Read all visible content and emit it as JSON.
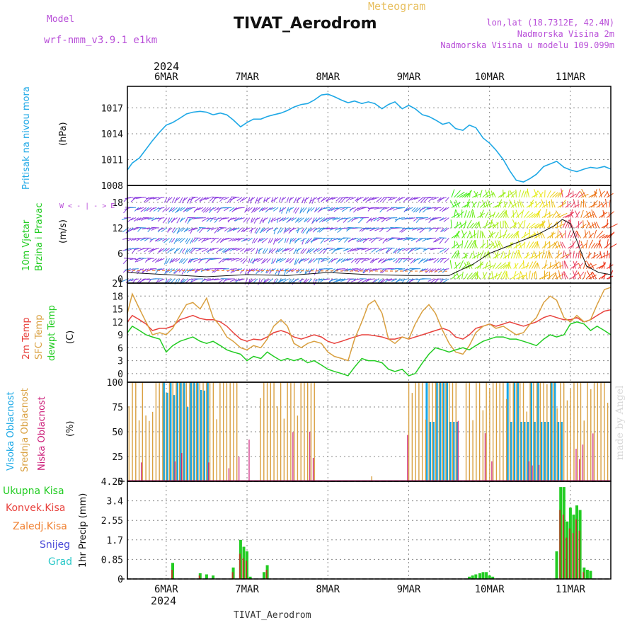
{
  "header": {
    "model_label": "Model",
    "model_name": "wrf-nmm_v3.9.1  e1km",
    "product": "Meteogram",
    "station": "TIVAT_Aerodrom",
    "lonlat": "lon,lat (18.7312E, 42.4N)",
    "elev": "Nadmorska Visina 2m",
    "model_elev": "Nadmorska Visina u modelu 109.099m",
    "footer_station": "TIVAT_Aerodrom",
    "credit": "made by Angel",
    "year_top": "2024",
    "year_bottom": "2024"
  },
  "colors": {
    "pressure": "#1ea8e6",
    "t2m": "#e8413c",
    "sfc": "#d9a040",
    "dewpt": "#22cc22",
    "high_cloud": "#17a7e6",
    "mid_cloud": "#d9a040",
    "low_cloud": "#cc1f7a",
    "purple": "#b84ed8",
    "grid": "#888888"
  },
  "chart_data": {
    "type": "meteogram",
    "x_dates": [
      "6MAR",
      "7MAR",
      "8MAR",
      "9MAR",
      "10MAR",
      "11MAR"
    ],
    "x_range_days": [
      5.52,
      11.5
    ],
    "panels": [
      {
        "id": "pressure",
        "type": "line",
        "ylabels": [
          "Pritisak na nivou mora"
        ],
        "unit": "(hPa)",
        "yticks": [
          "1008",
          "1011",
          "1014",
          "1017"
        ],
        "ylim": [
          1008,
          1019.5
        ],
        "series": [
          {
            "x": [
              5.52,
              5.58,
              5.67,
              5.75,
              5.83,
              5.92,
              6.0,
              6.08,
              6.17,
              6.25,
              6.33,
              6.42,
              6.5,
              6.58,
              6.67,
              6.75,
              6.83,
              6.92,
              7.0,
              7.08,
              7.17,
              7.25,
              7.33,
              7.42,
              7.5,
              7.58,
              7.67,
              7.75,
              7.83,
              7.92,
              8.0,
              8.08,
              8.17,
              8.25,
              8.33,
              8.42,
              8.5,
              8.58,
              8.67,
              8.75,
              8.83,
              8.92,
              9.0,
              9.08,
              9.17,
              9.25,
              9.33,
              9.42,
              9.5,
              9.58,
              9.67,
              9.75,
              9.83,
              9.92,
              10.0,
              10.08,
              10.17,
              10.25,
              10.33,
              10.42,
              10.5,
              10.58,
              10.67,
              10.75,
              10.83,
              10.92,
              11.0,
              11.08,
              11.17,
              11.25,
              11.33,
              11.42,
              11.5
            ],
            "values": [
              1009.8,
              1010.6,
              1011.2,
              1012.2,
              1013.2,
              1014.2,
              1015.0,
              1015.3,
              1015.8,
              1016.3,
              1016.5,
              1016.6,
              1016.5,
              1016.2,
              1016.4,
              1016.2,
              1015.6,
              1014.8,
              1015.3,
              1015.7,
              1015.7,
              1016.0,
              1016.2,
              1016.4,
              1016.7,
              1017.1,
              1017.4,
              1017.5,
              1017.9,
              1018.5,
              1018.6,
              1018.3,
              1017.9,
              1017.6,
              1017.8,
              1017.5,
              1017.7,
              1017.5,
              1016.9,
              1017.4,
              1017.7,
              1016.9,
              1017.3,
              1016.9,
              1016.2,
              1016.0,
              1015.6,
              1015.1,
              1015.3,
              1014.6,
              1014.4,
              1015.0,
              1014.7,
              1013.5,
              1012.9,
              1012.1,
              1011.0,
              1009.7,
              1008.6,
              1008.4,
              1008.8,
              1009.3,
              1010.2,
              1010.5,
              1010.8,
              1010.1,
              1009.8,
              1009.6,
              1009.9,
              1010.1,
              1010.0,
              1010.2,
              1009.9
            ]
          }
        ]
      },
      {
        "id": "wind",
        "type": "vector",
        "ylabels": [
          "10m Vjetar",
          "Brzina i Pravac"
        ],
        "unit": "(m/s)",
        "yticks": [
          "0",
          "6",
          "12",
          "18"
        ],
        "ylim": [
          -1,
          22
        ],
        "legend_glyph": "W < - | - > E",
        "speed_line": {
          "x": [
            5.52,
            6.0,
            6.5,
            7.0,
            7.5,
            8.0,
            8.5,
            9.0,
            9.5,
            9.8,
            10.0,
            10.2,
            10.4,
            10.6,
            10.8,
            10.9,
            11.0,
            11.1,
            11.2,
            11.35,
            11.5
          ],
          "values": [
            1.5,
            1.0,
            0.5,
            1.0,
            0.8,
            1.5,
            1.0,
            0.8,
            0.8,
            3.5,
            6.0,
            7.5,
            9.0,
            10.5,
            12.5,
            14.0,
            13.0,
            8.0,
            3.0,
            1.5,
            1.0
          ]
        }
      },
      {
        "id": "temperature",
        "type": "line",
        "ylabels": [
          "2m Temp",
          "SFC Temp",
          "dewpt Temp"
        ],
        "unit": "(C)",
        "yticks": [
          "0",
          "3",
          "6",
          "9",
          "12",
          "15",
          "18",
          "21"
        ],
        "ylim": [
          -2,
          21
        ],
        "series": [
          {
            "name": "2m Temp",
            "x": [
              5.52,
              5.58,
              5.67,
              5.75,
              5.83,
              5.92,
              6.0,
              6.08,
              6.17,
              6.25,
              6.33,
              6.42,
              6.5,
              6.58,
              6.67,
              6.75,
              6.83,
              6.92,
              7.0,
              7.08,
              7.17,
              7.25,
              7.33,
              7.42,
              7.5,
              7.58,
              7.67,
              7.75,
              7.83,
              7.92,
              8.0,
              8.08,
              8.17,
              8.25,
              8.33,
              8.42,
              8.5,
              8.58,
              8.67,
              8.75,
              8.83,
              8.92,
              9.0,
              9.08,
              9.17,
              9.25,
              9.33,
              9.42,
              9.5,
              9.58,
              9.67,
              9.75,
              9.83,
              9.92,
              10.0,
              10.08,
              10.17,
              10.25,
              10.33,
              10.42,
              10.5,
              10.58,
              10.67,
              10.75,
              10.83,
              10.92,
              11.0,
              11.08,
              11.17,
              11.25,
              11.33,
              11.42,
              11.5
            ],
            "values": [
              12.0,
              13.5,
              12.5,
              11.5,
              10.0,
              10.5,
              10.5,
              11.0,
              12.5,
              13.0,
              13.5,
              12.8,
              12.5,
              12.5,
              12.0,
              11.0,
              9.5,
              8.0,
              7.5,
              8.0,
              7.8,
              8.5,
              9.5,
              10.0,
              9.5,
              8.5,
              8.0,
              8.5,
              9.0,
              8.5,
              7.5,
              7.0,
              7.5,
              8.0,
              8.5,
              9.0,
              9.0,
              8.8,
              8.5,
              8.0,
              8.0,
              8.5,
              8.0,
              8.5,
              9.0,
              9.5,
              10.0,
              10.5,
              10.0,
              8.5,
              8.0,
              9.0,
              10.5,
              11.0,
              11.5,
              11.0,
              11.5,
              12.0,
              11.5,
              11.0,
              11.5,
              12.0,
              13.0,
              13.5,
              13.0,
              12.5,
              12.5,
              13.0,
              12.0,
              12.5,
              13.5,
              14.5,
              14.8
            ]
          },
          {
            "name": "SFC Temp",
            "x": [
              5.52,
              5.58,
              5.67,
              5.75,
              5.83,
              5.92,
              6.0,
              6.08,
              6.17,
              6.25,
              6.33,
              6.42,
              6.5,
              6.58,
              6.67,
              6.75,
              6.83,
              6.92,
              7.0,
              7.08,
              7.17,
              7.25,
              7.33,
              7.42,
              7.5,
              7.58,
              7.67,
              7.75,
              7.83,
              7.92,
              8.0,
              8.08,
              8.17,
              8.25,
              8.33,
              8.42,
              8.5,
              8.58,
              8.67,
              8.75,
              8.83,
              8.92,
              9.0,
              9.08,
              9.17,
              9.25,
              9.33,
              9.42,
              9.5,
              9.58,
              9.67,
              9.75,
              9.83,
              9.92,
              10.0,
              10.08,
              10.17,
              10.25,
              10.33,
              10.42,
              10.5,
              10.58,
              10.67,
              10.75,
              10.83,
              10.92,
              11.0,
              11.08,
              11.17,
              11.25,
              11.33,
              11.42,
              11.5
            ],
            "values": [
              14.0,
              18.5,
              15.0,
              12.0,
              9.0,
              9.5,
              9.0,
              10.5,
              13.5,
              16.0,
              16.5,
              15.0,
              17.5,
              13.0,
              11.0,
              8.5,
              7.5,
              6.0,
              5.5,
              6.5,
              6.0,
              8.0,
              11.0,
              12.5,
              11.0,
              7.0,
              6.0,
              7.0,
              7.5,
              7.0,
              5.0,
              4.0,
              3.5,
              3.0,
              8.0,
              12.0,
              16.0,
              17.0,
              14.0,
              8.0,
              7.0,
              8.5,
              8.0,
              11.5,
              14.5,
              16.0,
              14.0,
              10.0,
              7.0,
              5.0,
              4.5,
              6.5,
              9.5,
              11.0,
              11.5,
              10.5,
              11.0,
              10.0,
              9.0,
              9.5,
              11.5,
              13.0,
              16.5,
              18.0,
              17.0,
              13.0,
              12.0,
              13.5,
              12.0,
              12.5,
              16.0,
              19.5,
              20.0
            ]
          },
          {
            "name": "dewpt Temp",
            "x": [
              5.52,
              5.58,
              5.67,
              5.75,
              5.83,
              5.92,
              6.0,
              6.08,
              6.17,
              6.25,
              6.33,
              6.42,
              6.5,
              6.58,
              6.67,
              6.75,
              6.83,
              6.92,
              7.0,
              7.08,
              7.17,
              7.25,
              7.33,
              7.42,
              7.5,
              7.58,
              7.67,
              7.75,
              7.83,
              7.92,
              8.0,
              8.08,
              8.17,
              8.25,
              8.33,
              8.42,
              8.5,
              8.58,
              8.67,
              8.75,
              8.83,
              8.92,
              9.0,
              9.08,
              9.17,
              9.25,
              9.33,
              9.42,
              9.5,
              9.58,
              9.67,
              9.75,
              9.83,
              9.92,
              10.0,
              10.08,
              10.17,
              10.25,
              10.33,
              10.42,
              10.5,
              10.58,
              10.67,
              10.75,
              10.83,
              10.92,
              11.0,
              11.08,
              11.17,
              11.25,
              11.33,
              11.42,
              11.5
            ],
            "values": [
              9.5,
              11.0,
              10.0,
              9.0,
              8.5,
              8.0,
              5.0,
              6.5,
              7.5,
              8.0,
              8.5,
              7.5,
              7.0,
              7.5,
              6.5,
              5.5,
              5.0,
              4.5,
              3.0,
              4.0,
              3.5,
              5.0,
              4.0,
              3.0,
              3.5,
              3.0,
              3.5,
              2.5,
              3.0,
              2.0,
              1.0,
              0.5,
              0.0,
              -0.5,
              1.5,
              3.5,
              3.0,
              3.0,
              2.5,
              1.0,
              0.5,
              1.0,
              -0.5,
              0.0,
              2.5,
              4.5,
              6.0,
              5.5,
              5.0,
              5.5,
              6.0,
              5.5,
              6.5,
              7.5,
              8.0,
              8.5,
              8.5,
              8.0,
              8.0,
              7.5,
              7.0,
              6.5,
              8.0,
              9.0,
              8.5,
              9.0,
              11.5,
              12.0,
              11.5,
              10.0,
              11.0,
              10.0,
              9.0
            ]
          }
        ]
      },
      {
        "id": "cloud",
        "type": "bar",
        "ylabels": [
          "Visoka Oblacnost",
          "Srednja Oblacnost",
          "Niska Oblacnost"
        ],
        "unit": "(%)",
        "yticks": [
          "0",
          "25",
          "50",
          "75",
          "100"
        ],
        "ylim": [
          0,
          100
        ],
        "bar_step_days": 0.0417
      },
      {
        "id": "precip",
        "type": "bar",
        "legend": [
          "Ukupna Kisa",
          "Konvek.Kisa",
          "Zaledj.Kisa",
          "Snijeg",
          "Grad"
        ],
        "unit": "1hr Precip (mm)",
        "yticks": [
          "0",
          "0.85",
          "1.7",
          "2.55",
          "3.4",
          "4.25"
        ],
        "ylim": [
          0,
          4.25
        ],
        "series": [
          {
            "name": "Ukupna Kisa",
            "x": [
              6.08,
              6.42,
              6.5,
              6.58,
              6.83,
              6.92,
              6.96,
              7.0,
              7.04,
              7.21,
              7.25,
              9.75,
              9.79,
              9.83,
              9.88,
              9.92,
              9.96,
              10.0,
              10.04,
              10.83,
              10.88,
              10.92,
              10.96,
              11.0,
              11.04,
              11.08,
              11.12,
              11.17,
              11.21,
              11.25
            ],
            "values": [
              0.7,
              0.25,
              0.2,
              0.15,
              0.5,
              1.7,
              1.4,
              1.2,
              0.1,
              0.3,
              0.6,
              0.1,
              0.15,
              0.2,
              0.25,
              0.3,
              0.3,
              0.15,
              0.1,
              1.2,
              4.0,
              4.0,
              2.5,
              3.1,
              2.8,
              3.2,
              3.0,
              0.5,
              0.4,
              0.35
            ]
          },
          {
            "name": "Konvek.Kisa",
            "x": [
              6.08,
              6.42,
              6.83,
              6.92,
              6.96,
              7.0,
              7.25,
              10.88,
              10.92,
              10.96,
              11.0,
              11.04,
              11.08,
              11.12,
              11.17
            ],
            "values": [
              0.4,
              0.15,
              0.3,
              1.1,
              0.9,
              0.8,
              0.4,
              3.0,
              2.8,
              1.8,
              2.2,
              2.0,
              2.6,
              2.1,
              0.3
            ]
          }
        ]
      }
    ]
  }
}
